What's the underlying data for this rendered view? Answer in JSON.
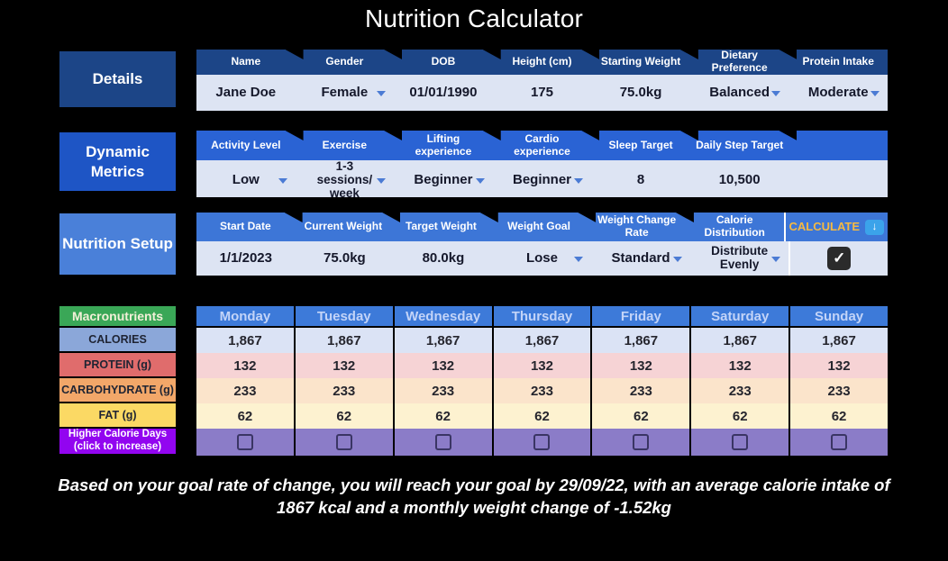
{
  "title": "Nutrition Calculator",
  "sections": {
    "details": {
      "label": "Details",
      "headers": [
        "Name",
        "Gender",
        "DOB",
        "Height (cm)",
        "Starting Weight",
        "Dietary Preference",
        "Protein Intake"
      ],
      "values": [
        "Jane Doe",
        "Female",
        "01/01/1990",
        "175",
        "75.0kg",
        "Balanced",
        "Moderate"
      ]
    },
    "dynamic_metrics": {
      "label": "Dynamic Metrics",
      "headers": [
        "Activity Level",
        "Exercise",
        "Lifting experience",
        "Cardio experience",
        "Sleep Target",
        "Daily Step Target"
      ],
      "values": [
        "Low",
        "1-3 sessions/ week",
        "Beginner",
        "Beginner",
        "8",
        "10,500"
      ]
    },
    "nutrition_setup": {
      "label": "Nutrition Setup",
      "headers": [
        "Start Date",
        "Current Weight",
        "Target Weight",
        "Weight Goal",
        "Weight Change Rate",
        "Calorie Distribution"
      ],
      "values": [
        "1/1/2023",
        "75.0kg",
        "80.0kg",
        "Lose",
        "Standard",
        "Distribute Evenly"
      ],
      "calculate_label": "CALCULATE",
      "calculate_icon": "down-arrow",
      "calculate_checkbox_checked": true,
      "checkmark": "✓"
    }
  },
  "week_table": {
    "corner_label": "Macronutrients",
    "row_labels": [
      "CALORIES",
      "PROTEIN (g)",
      "CARBOHYDRATE (g)",
      "FAT (g)"
    ],
    "higher_calorie_label_line1": "Higher Calorie Days",
    "higher_calorie_label_line2": "(click to increase)",
    "days": [
      "Monday",
      "Tuesday",
      "Wednesday",
      "Thursday",
      "Friday",
      "Saturday",
      "Sunday"
    ],
    "rows": {
      "calories": [
        "1,867",
        "1,867",
        "1,867",
        "1,867",
        "1,867",
        "1,867",
        "1,867"
      ],
      "protein": [
        "132",
        "132",
        "132",
        "132",
        "132",
        "132",
        "132"
      ],
      "carbohydrate": [
        "233",
        "233",
        "233",
        "233",
        "233",
        "233",
        "233"
      ],
      "fat": [
        "62",
        "62",
        "62",
        "62",
        "62",
        "62",
        "62"
      ]
    },
    "higher_calorie_days_checked": [
      false,
      false,
      false,
      false,
      false,
      false,
      false
    ]
  },
  "summary": "Based on your goal rate of change, you will reach your goal by 29/09/22, with an average calorie intake of 1867 kcal and a monthly weight change of -1.52kg",
  "colors": {
    "details_blue": "#1c4587",
    "dynamic_blue": "#1e55c5",
    "setup_blue": "#4a80d9",
    "value_row_bg": "#dde4f3",
    "day_header_blue": "#3d7ad9",
    "macro_green": "#3aa757",
    "calories_label_bg": "#8ba7d9",
    "protein_label_bg": "#e06c6c",
    "carbohydrate_label_bg": "#f2a769",
    "fat_label_bg": "#fbd964",
    "higher_calorie_header_purple": "#9205f0",
    "higher_calorie_row_purple": "#8b7cc8",
    "calculate_text": "#f5b942",
    "calculate_badge": "#3ba3ea"
  }
}
